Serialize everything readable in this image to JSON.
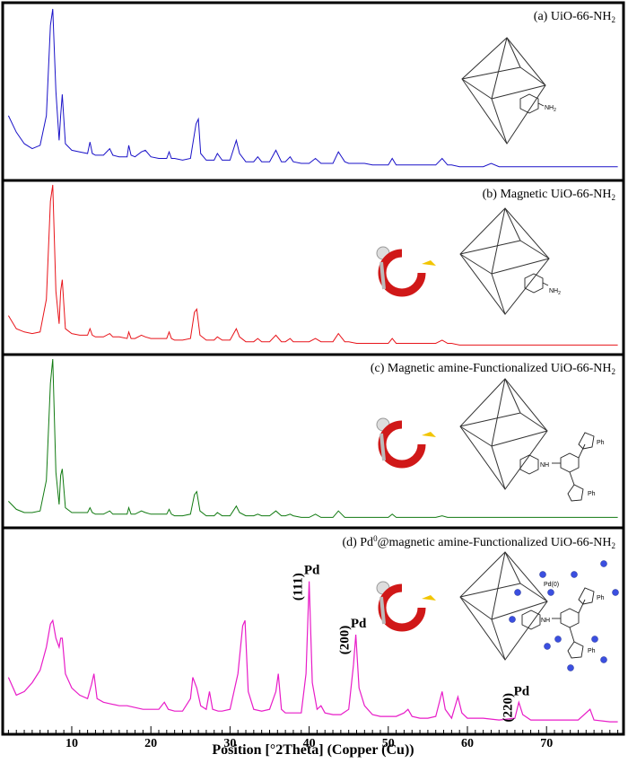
{
  "chart_data": [
    {
      "type": "line",
      "panel": "a",
      "title_main": "(a) UiO-66-NH",
      "title_sub": "2",
      "color": "#1a12c8",
      "series": [
        {
          "x": [
            2,
            3,
            4,
            5,
            6,
            6.8,
            7.3,
            7.6,
            8.0,
            8.4,
            8.6,
            8.8,
            9.2,
            10,
            11,
            12,
            12.3,
            12.6,
            13,
            14,
            14.8,
            15.2,
            16,
            17,
            17.2,
            17.5,
            18,
            18.8,
            19.3,
            20,
            21,
            22,
            22.3,
            22.6,
            23,
            24,
            25,
            25.7,
            26,
            26.3,
            27,
            28,
            28.4,
            29,
            30,
            30.8,
            31.2,
            32,
            33,
            33.5,
            34,
            35,
            35.8,
            36.5,
            37,
            37.6,
            38,
            39,
            40,
            40.8,
            41.5,
            42,
            43,
            43.7,
            44.5,
            45,
            46,
            47,
            48,
            49,
            50,
            50.5,
            51,
            52,
            53,
            54,
            55,
            56,
            56.8,
            57.5,
            58,
            59,
            60,
            62,
            63,
            64,
            66,
            68,
            70,
            72,
            74,
            76,
            78,
            79
          ],
          "y": [
            0.35,
            0.25,
            0.18,
            0.15,
            0.17,
            0.35,
            0.9,
            1.0,
            0.5,
            0.2,
            0.35,
            0.48,
            0.18,
            0.14,
            0.13,
            0.12,
            0.19,
            0.12,
            0.11,
            0.11,
            0.15,
            0.11,
            0.1,
            0.1,
            0.17,
            0.11,
            0.1,
            0.13,
            0.14,
            0.1,
            0.09,
            0.09,
            0.13,
            0.09,
            0.09,
            0.08,
            0.09,
            0.3,
            0.33,
            0.12,
            0.08,
            0.08,
            0.12,
            0.08,
            0.08,
            0.2,
            0.12,
            0.07,
            0.07,
            0.1,
            0.07,
            0.07,
            0.14,
            0.07,
            0.07,
            0.1,
            0.07,
            0.06,
            0.06,
            0.09,
            0.06,
            0.06,
            0.06,
            0.13,
            0.07,
            0.06,
            0.06,
            0.06,
            0.05,
            0.05,
            0.05,
            0.09,
            0.05,
            0.05,
            0.05,
            0.05,
            0.05,
            0.05,
            0.09,
            0.05,
            0.05,
            0.04,
            0.04,
            0.04,
            0.06,
            0.04,
            0.04,
            0.04,
            0.04,
            0.04,
            0.04,
            0.04,
            0.04,
            0.04
          ]
        }
      ],
      "annotations": []
    },
    {
      "type": "line",
      "panel": "b",
      "title_main": "(b) Magnetic UiO-66-NH",
      "title_sub": "2",
      "color": "#e8141a",
      "series": [
        {
          "x": [
            2,
            3,
            4,
            5,
            6,
            6.8,
            7.3,
            7.6,
            8.0,
            8.4,
            8.6,
            8.8,
            9.2,
            10,
            11,
            12,
            12.3,
            12.6,
            13,
            14,
            14.8,
            15.2,
            16,
            17,
            17.2,
            17.5,
            18,
            18.8,
            19.3,
            20,
            21,
            22,
            22.3,
            22.6,
            23,
            24,
            25,
            25.5,
            25.8,
            26.2,
            27,
            28,
            28.4,
            29,
            30,
            30.8,
            31.2,
            32,
            33,
            33.5,
            34,
            35,
            35.8,
            36.5,
            37,
            37.6,
            38,
            39,
            40,
            40.8,
            41.5,
            42,
            43,
            43.7,
            44.5,
            45,
            46,
            47,
            48,
            49,
            50,
            50.5,
            51,
            52,
            53,
            54,
            55,
            56,
            56.8,
            57.5,
            58,
            59,
            60,
            62,
            63,
            64,
            66,
            68,
            70,
            72,
            74,
            76,
            78,
            79
          ],
          "y": [
            0.2,
            0.12,
            0.1,
            0.09,
            0.1,
            0.3,
            0.9,
            1.0,
            0.35,
            0.15,
            0.35,
            0.42,
            0.12,
            0.09,
            0.08,
            0.08,
            0.12,
            0.08,
            0.07,
            0.07,
            0.09,
            0.07,
            0.07,
            0.06,
            0.1,
            0.06,
            0.06,
            0.08,
            0.07,
            0.06,
            0.06,
            0.06,
            0.1,
            0.06,
            0.05,
            0.05,
            0.06,
            0.22,
            0.24,
            0.08,
            0.05,
            0.05,
            0.07,
            0.05,
            0.05,
            0.12,
            0.07,
            0.04,
            0.04,
            0.06,
            0.04,
            0.04,
            0.08,
            0.04,
            0.04,
            0.06,
            0.04,
            0.04,
            0.04,
            0.06,
            0.04,
            0.04,
            0.04,
            0.09,
            0.04,
            0.04,
            0.03,
            0.03,
            0.03,
            0.03,
            0.03,
            0.06,
            0.03,
            0.03,
            0.03,
            0.03,
            0.03,
            0.03,
            0.05,
            0.03,
            0.03,
            0.02,
            0.02,
            0.02,
            0.02,
            0.02,
            0.02,
            0.02,
            0.02,
            0.02,
            0.02,
            0.02,
            0.02,
            0.02
          ]
        }
      ],
      "annotations": []
    },
    {
      "type": "line",
      "panel": "c",
      "title_main": "(c) Magnetic amine-Functionalized UiO-66-NH",
      "title_sub": "2",
      "color": "#117a11",
      "series": [
        {
          "x": [
            2,
            3,
            4,
            5,
            6,
            6.8,
            7.3,
            7.6,
            8.0,
            8.4,
            8.6,
            8.8,
            9.2,
            10,
            11,
            12,
            12.3,
            12.6,
            13,
            14,
            14.8,
            15.2,
            16,
            17,
            17.2,
            17.5,
            18,
            18.8,
            19.3,
            20,
            21,
            22,
            22.3,
            22.6,
            23,
            24,
            25,
            25.5,
            25.8,
            26.2,
            27,
            28,
            28.4,
            29,
            30,
            30.8,
            31.2,
            32,
            33,
            33.5,
            34,
            35,
            35.8,
            36.5,
            37,
            37.6,
            38,
            39,
            40,
            40.8,
            41.5,
            42,
            43,
            43.7,
            44.5,
            45,
            46,
            47,
            48,
            49,
            50,
            50.5,
            51,
            52,
            53,
            54,
            55,
            56,
            56.8,
            57.5,
            58,
            59,
            60,
            62,
            63,
            64,
            66,
            68,
            70,
            72,
            74,
            76,
            78,
            79
          ],
          "y": [
            0.12,
            0.07,
            0.05,
            0.05,
            0.06,
            0.25,
            0.85,
            1.0,
            0.3,
            0.1,
            0.28,
            0.32,
            0.08,
            0.05,
            0.05,
            0.05,
            0.08,
            0.05,
            0.04,
            0.04,
            0.06,
            0.04,
            0.04,
            0.04,
            0.08,
            0.04,
            0.04,
            0.06,
            0.05,
            0.04,
            0.04,
            0.04,
            0.07,
            0.04,
            0.03,
            0.03,
            0.04,
            0.16,
            0.18,
            0.06,
            0.03,
            0.03,
            0.05,
            0.03,
            0.03,
            0.09,
            0.05,
            0.03,
            0.03,
            0.04,
            0.03,
            0.03,
            0.06,
            0.03,
            0.03,
            0.04,
            0.03,
            0.02,
            0.02,
            0.04,
            0.02,
            0.02,
            0.02,
            0.06,
            0.02,
            0.02,
            0.02,
            0.02,
            0.02,
            0.02,
            0.02,
            0.04,
            0.02,
            0.02,
            0.02,
            0.02,
            0.02,
            0.02,
            0.03,
            0.02,
            0.02,
            0.02,
            0.02,
            0.02,
            0.02,
            0.02,
            0.02,
            0.02,
            0.02,
            0.02,
            0.02,
            0.02,
            0.02,
            0.02
          ]
        }
      ],
      "annotations": []
    },
    {
      "type": "line",
      "panel": "d",
      "title_main": "(d) Pd",
      "title_sup": "0",
      "title_rest": "@magnetic amine-Functionalized UiO-66-NH",
      "title_sub": "2",
      "color": "#e81cc8",
      "series": [
        {
          "x": [
            2,
            3,
            4,
            5,
            6,
            6.8,
            7.3,
            7.6,
            8.0,
            8.4,
            8.6,
            8.8,
            9.2,
            10,
            11,
            12,
            12.5,
            12.8,
            13.2,
            14,
            15,
            16,
            17,
            18,
            19,
            20,
            21,
            21.7,
            22.2,
            23,
            24,
            25,
            25.3,
            25.8,
            26.3,
            27,
            27.4,
            27.8,
            28.5,
            29,
            30,
            31,
            31.6,
            31.9,
            32.3,
            33,
            34,
            35,
            35.8,
            36.1,
            36.5,
            37,
            38,
            39,
            39.6,
            40.0,
            40.4,
            41,
            41.5,
            42,
            43,
            44,
            45,
            45.6,
            45.9,
            46.3,
            47,
            48,
            49,
            50,
            51,
            52,
            52.5,
            53,
            54,
            55,
            56,
            56.8,
            57.2,
            58,
            58.8,
            59.3,
            60,
            62,
            64,
            66,
            66.5,
            67,
            68,
            70,
            72,
            74,
            75.5,
            76,
            78,
            79
          ],
          "y": [
            0.28,
            0.18,
            0.2,
            0.25,
            0.32,
            0.45,
            0.58,
            0.6,
            0.5,
            0.45,
            0.5,
            0.5,
            0.3,
            0.22,
            0.18,
            0.16,
            0.24,
            0.3,
            0.16,
            0.14,
            0.13,
            0.12,
            0.12,
            0.11,
            0.1,
            0.1,
            0.1,
            0.14,
            0.1,
            0.09,
            0.09,
            0.16,
            0.28,
            0.22,
            0.12,
            0.1,
            0.2,
            0.1,
            0.09,
            0.09,
            0.1,
            0.3,
            0.57,
            0.6,
            0.2,
            0.1,
            0.09,
            0.1,
            0.2,
            0.3,
            0.1,
            0.08,
            0.08,
            0.08,
            0.3,
            0.82,
            0.25,
            0.1,
            0.12,
            0.08,
            0.07,
            0.07,
            0.1,
            0.35,
            0.52,
            0.22,
            0.12,
            0.07,
            0.06,
            0.06,
            0.06,
            0.08,
            0.1,
            0.06,
            0.05,
            0.05,
            0.06,
            0.2,
            0.1,
            0.05,
            0.17,
            0.08,
            0.05,
            0.05,
            0.04,
            0.05,
            0.14,
            0.07,
            0.04,
            0.04,
            0.04,
            0.04,
            0.1,
            0.04,
            0.03,
            0.03
          ]
        }
      ],
      "annotations": [
        {
          "label": "Pd",
          "hkl": "(111)",
          "x": 40.0
        },
        {
          "label": "Pd",
          "hkl": "(200)",
          "x": 45.9
        },
        {
          "label": "Pd",
          "hkl": "(220)",
          "x": 66.5
        }
      ]
    }
  ],
  "axis": {
    "xlabel": "Position [°2Theta] (Copper (Cu))",
    "xlim": [
      1.5,
      79.5
    ],
    "ticks": [
      "10",
      "20",
      "30",
      "40",
      "50",
      "60",
      "70"
    ],
    "tick_values": [
      10,
      20,
      30,
      40,
      50,
      60,
      70
    ]
  },
  "structures": {
    "amine": "NH",
    "amine_sub": "2",
    "triazine_nh": "NH",
    "ph": "Ph",
    "pd0": "Pd(0)"
  }
}
